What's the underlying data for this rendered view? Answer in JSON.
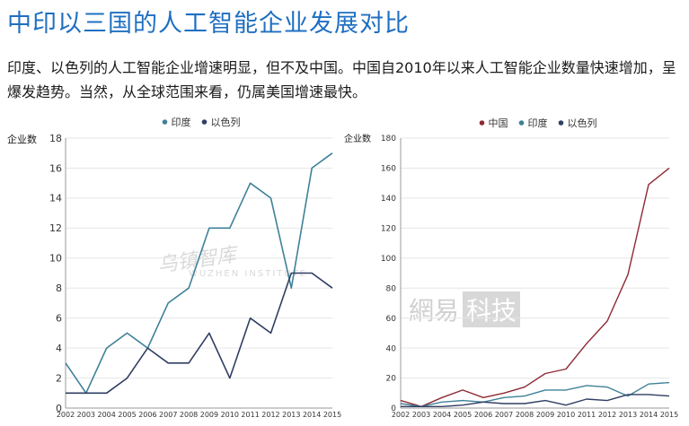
{
  "header": {
    "title": "中印以三国的人工智能企业发展对比",
    "description": "印度、以色列的人工智能企业增速明显，但不及中国。中国自2010年以来人工智能企业数量快速增加，呈爆发趋势。当然，从全球范围来看，仍属美国增速最快。"
  },
  "watermarks": {
    "left_main": "乌镇智库",
    "left_sub": "WUZHEN INSTITUTE",
    "right_main": "網易",
    "right_box": "科技"
  },
  "chart_data": [
    {
      "type": "line",
      "ylabel": "企业数",
      "ylim": [
        0,
        18
      ],
      "yticks": [
        0,
        2,
        4,
        6,
        8,
        10,
        12,
        14,
        16,
        18
      ],
      "grid": true,
      "legend_position": "top-center",
      "x": [
        "2002",
        "2003",
        "2004",
        "2005",
        "2006",
        "2007",
        "2008",
        "2009",
        "2010",
        "2011",
        "2012",
        "2013",
        "2014",
        "2015"
      ],
      "series": [
        {
          "name": "印度",
          "color": "#3f8198",
          "values": [
            3,
            1,
            4,
            5,
            4,
            7,
            8,
            12,
            12,
            15,
            14,
            8,
            16,
            17
          ]
        },
        {
          "name": "以色列",
          "color": "#2f3e63",
          "values": [
            1,
            1,
            1,
            2,
            4,
            3,
            3,
            5,
            2,
            6,
            5,
            9,
            9,
            8
          ]
        }
      ]
    },
    {
      "type": "line",
      "ylabel": "企业数",
      "ylim": [
        0,
        180
      ],
      "yticks": [
        0,
        20,
        40,
        60,
        80,
        100,
        120,
        140,
        160,
        180
      ],
      "grid": true,
      "legend_position": "top-center",
      "x": [
        "2002",
        "2003",
        "2004",
        "2005",
        "2006",
        "2007",
        "2008",
        "2009",
        "2010",
        "2011",
        "2012",
        "2013",
        "2014",
        "2015"
      ],
      "series": [
        {
          "name": "中国",
          "color": "#8e2a34",
          "values": [
            5,
            1,
            7,
            12,
            7,
            10,
            14,
            23,
            26,
            43,
            58,
            89,
            149,
            160
          ]
        },
        {
          "name": "印度",
          "color": "#3f8198",
          "values": [
            3,
            1,
            4,
            5,
            4,
            7,
            8,
            12,
            12,
            15,
            14,
            8,
            16,
            17
          ]
        },
        {
          "name": "以色列",
          "color": "#2f3e63",
          "values": [
            1,
            1,
            1,
            2,
            4,
            3,
            3,
            5,
            2,
            6,
            5,
            9,
            9,
            8
          ]
        }
      ]
    }
  ]
}
